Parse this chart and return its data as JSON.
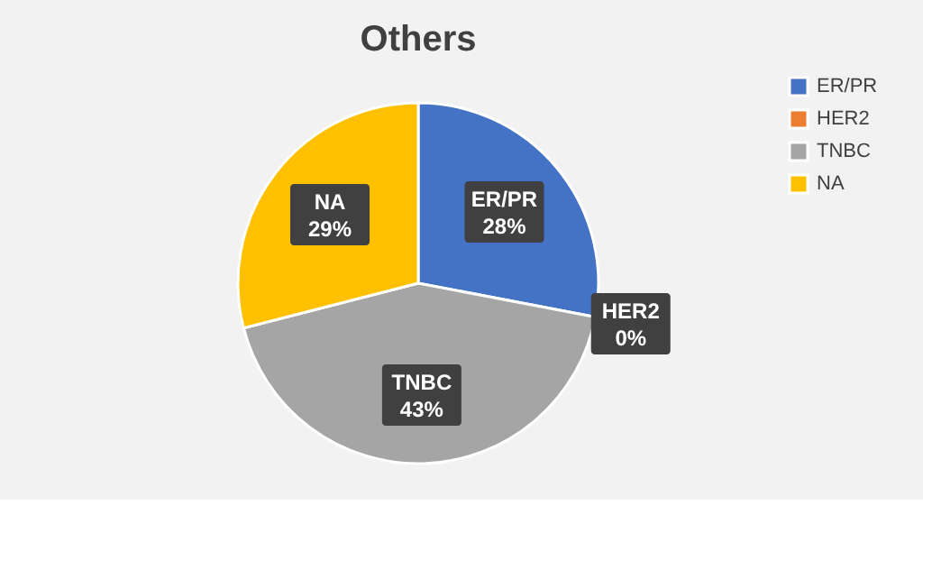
{
  "chart_data": {
    "type": "pie",
    "title": "Others",
    "categories": [
      "ER/PR",
      "HER2",
      "TNBC",
      "NA"
    ],
    "values": [
      28,
      0,
      43,
      29
    ],
    "value_labels": [
      "28%",
      "0%",
      "43%",
      "29%"
    ],
    "colors": [
      "#4472c4",
      "#ed7d31",
      "#a5a5a5",
      "#ffc000"
    ],
    "legend": "right"
  }
}
